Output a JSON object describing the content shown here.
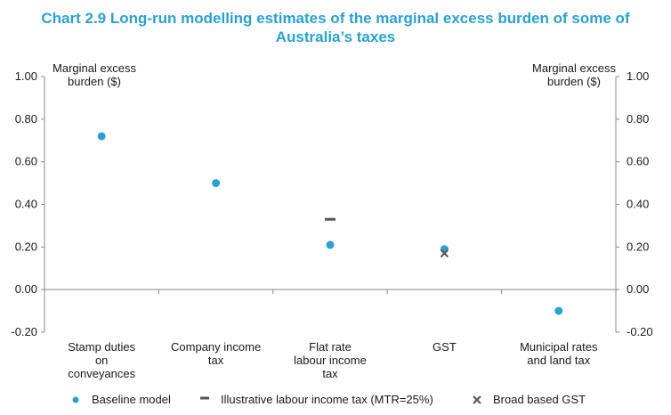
{
  "chart_data": {
    "type": "scatter",
    "title_line1": "Chart 2.9 Long-run modelling estimates of the marginal excess burden of some of",
    "title_line2": "Australia’s taxes",
    "ylabel_left": [
      "Marginal excess",
      "burden ($)"
    ],
    "ylabel_right": [
      "Marginal excess",
      "burden ($)"
    ],
    "ylim": [
      -0.2,
      1.0
    ],
    "yticks": [
      "1.00",
      "0.80",
      "0.60",
      "0.40",
      "0.20",
      "0.00",
      "-0.20"
    ],
    "categories": [
      [
        "Stamp duties",
        "on",
        "conveyances"
      ],
      [
        "Company income",
        "tax"
      ],
      [
        "Flat rate",
        "labour income",
        "tax"
      ],
      [
        "GST"
      ],
      [
        "Municipal rates",
        "and land tax"
      ]
    ],
    "series": [
      {
        "name": "Baseline model",
        "marker": "circle",
        "color": "#2aa1d1",
        "values": [
          0.72,
          0.5,
          0.21,
          0.19,
          -0.1
        ]
      },
      {
        "name": "Illustrative labour income tax (MTR=25%)",
        "marker": "dash",
        "color": "#555555",
        "values": [
          null,
          null,
          0.33,
          null,
          null
        ]
      },
      {
        "name": "Broad based GST",
        "marker": "cross",
        "color": "#555555",
        "values": [
          null,
          null,
          null,
          0.17,
          null
        ]
      }
    ],
    "grid": false,
    "legend_position": "bottom"
  }
}
